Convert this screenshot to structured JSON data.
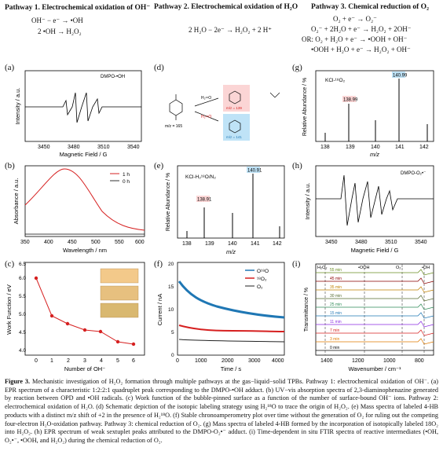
{
  "headers": {
    "p1": "Pathway 1. Electrochemical oxidation of OH⁻",
    "p2": "Pathway 2. Electrochemical oxidation of H₂O",
    "p3": "Pathway 3. Chemical reduction of O₂"
  },
  "equations": {
    "p1": [
      "OH⁻ − e⁻ → •OH",
      "2 •OH → H₂O₂"
    ],
    "p2": [
      "2 H₂O − 2e⁻ → H₂O₂ + 2 H⁺"
    ],
    "p3": [
      "O₂ + e⁻ → O₂⁻",
      "O₂⁻ + 2H₂O + e⁻ → H₂O₂ + 2OH⁻",
      "OR: O₂ + H₂O + e⁻ → •OOH + OH⁻",
      "•OOH + H₂O + e⁻ → H₂O₂ + OH⁻"
    ]
  },
  "panels": {
    "a": {
      "letter": "(a)",
      "ylabel": "Intensity / a.u.",
      "xlabel": "Magnetic Field / G",
      "inset": "DMPO-•OH",
      "xticks": [
        "3450",
        "3480",
        "3510",
        "3540"
      ]
    },
    "b": {
      "letter": "(b)",
      "ylabel": "Absorbance / a.u.",
      "xlabel": "Wavelength / nm",
      "xticks": [
        "350",
        "400",
        "450",
        "500",
        "550",
        "600"
      ],
      "legend": [
        "1 h",
        "0 h"
      ]
    },
    "c": {
      "letter": "(c)",
      "ylabel": "Work Function / eV",
      "xlabel": "Number of OH⁻",
      "xticks": [
        "0",
        "1",
        "2",
        "3",
        "4",
        "5",
        "6"
      ],
      "yticks": [
        "4.0",
        "4.5",
        "5.0",
        "5.5",
        "6.0",
        "6.5"
      ]
    },
    "d": {
      "letter": "(d)",
      "m1": "m/z = 165",
      "m2": "m/z = 139",
      "m3": "m/z = 141",
      "r1": "H₂¹⁶O",
      "r2": "H₂¹⁸O"
    },
    "e": {
      "letter": "(e)",
      "ylabel": "Relative Abundance / %",
      "xlabel": "m/z",
      "inset": "KCl-H₂¹⁸O/N₂",
      "xticks": [
        "138",
        "139",
        "140",
        "141",
        "142"
      ],
      "peak_labels": [
        "138.91",
        "140.91"
      ]
    },
    "f": {
      "letter": "(f)",
      "ylabel": "Current / nA",
      "xlabel": "Time / s",
      "xticks": [
        "0",
        "1000",
        "2000",
        "3000",
        "4000"
      ],
      "yticks": [
        "0",
        "5",
        "10",
        "15",
        "20"
      ],
      "legend": [
        "O¹⁸O",
        "¹⁸O₂",
        "O₂"
      ]
    },
    "g": {
      "letter": "(g)",
      "ylabel": "Relative Abundance / %",
      "xlabel": "m/z",
      "inset": "KCl-¹⁸O₂",
      "xticks": [
        "138",
        "139",
        "140",
        "141",
        "142"
      ],
      "peak_labels": [
        "138.99",
        "140.99"
      ]
    },
    "h": {
      "letter": "(h)",
      "ylabel": "Intensity / a.u.",
      "xlabel": "Magnetic Field / G",
      "inset": "DMPO-O₂•⁻",
      "xticks": [
        "3450",
        "3480",
        "3510",
        "3540"
      ]
    },
    "i": {
      "letter": "(i)",
      "ylabel": "Transmittance / %",
      "xlabel": "Wavenumber / cm⁻¹",
      "xticks": [
        "1400",
        "1200",
        "1000",
        "800"
      ],
      "bands": [
        "H₂O₂",
        "•OOH",
        "O₂⁻",
        "•OH"
      ],
      "times": [
        "55 min",
        "45 min",
        "35 min",
        "30 min",
        "25 min",
        "15 min",
        "11 min",
        "7 min",
        "3 min",
        "0 min"
      ]
    }
  },
  "chart_data": [
    {
      "type": "line",
      "panel": "a",
      "x": [
        3450,
        3465,
        3472,
        3478,
        3484,
        3490,
        3496,
        3503,
        3510,
        3520,
        3540
      ],
      "values": [
        0,
        0,
        0.3,
        -0.8,
        1,
        -0.9,
        0.95,
        -0.8,
        0.35,
        0,
        0
      ]
    },
    {
      "type": "line",
      "panel": "b",
      "x": [
        350,
        400,
        430,
        450,
        500,
        550,
        600
      ],
      "series": [
        {
          "name": "1 h",
          "values": [
            0.35,
            0.85,
            1.0,
            0.95,
            0.55,
            0.25,
            0.15
          ]
        },
        {
          "name": "0 h",
          "values": [
            0.05,
            0.05,
            0.05,
            0.05,
            0.05,
            0.05,
            0.05
          ]
        }
      ]
    },
    {
      "type": "line",
      "panel": "c",
      "x": [
        0,
        1,
        2,
        3,
        4,
        5,
        6
      ],
      "values": [
        6.3,
        5.2,
        4.95,
        4.8,
        4.75,
        4.45,
        4.38
      ],
      "ylim": [
        4.0,
        6.5
      ]
    },
    {
      "type": "bar",
      "panel": "e",
      "x": [
        138.1,
        138.91,
        140.0,
        140.91,
        141.9
      ],
      "values": [
        10,
        42,
        35,
        100,
        16
      ]
    },
    {
      "type": "line",
      "panel": "f",
      "x": [
        0,
        500,
        1000,
        2000,
        3000,
        4000
      ],
      "series": [
        {
          "name": "O¹⁸O",
          "values": [
            16,
            12.5,
            11,
            10,
            9,
            8.5
          ]
        },
        {
          "name": "¹⁸O₂",
          "values": [
            6.5,
            5.8,
            5.6,
            5.5,
            5.5,
            5.4
          ]
        },
        {
          "name": "O₂",
          "values": [
            3.2,
            3.0,
            2.9,
            2.9,
            2.8,
            2.8
          ]
        }
      ],
      "ylim": [
        0,
        20
      ]
    },
    {
      "type": "bar",
      "panel": "g",
      "x": [
        138.1,
        138.99,
        140.0,
        140.99,
        141.9
      ],
      "values": [
        12,
        65,
        30,
        100,
        25
      ]
    },
    {
      "type": "line",
      "panel": "h",
      "x": [
        3450,
        3470,
        3476,
        3482,
        3488,
        3494,
        3500,
        3506,
        3512,
        3520,
        3540
      ],
      "values": [
        0,
        0,
        0.6,
        -1,
        0.9,
        -0.8,
        0.9,
        -0.7,
        0.5,
        0,
        0
      ]
    }
  ],
  "caption": {
    "bold_lead": "Figure 3.",
    "text": "Mechanistic investigation of H₂O₂ formation through multiple pathways at the gas−liquid−solid TPBs. Pathway 1: electrochemical oxidation of OH⁻. (a) EPR spectrum of a characteristic 1:2:2:1 quadruplet peak corresponding to the DMPO-•OH adduct. (b) UV−vis absorption spectra of 2,3-diaminophenazine generated by reaction between OPD and •OH radicals. (c) Work function of the bubble-pinned surface as a function of the number of surface-bound OH⁻ ions. Pathway 2: electrochemical oxidation of H₂O. (d) Schematic depiction of the isotopic labeling strategy using H₂¹⁸O to trace the origin of H₂O₂. (e) Mass spectra of labeled 4-HB products with a distinct m/z shift of +2 in the presence of H₂¹⁸O. (f) Stable chronoamperometry plot over time without the generation of O₂ for ruling out the competing four-electron H₂O-oxidation pathway. Pathway 3: chemical reduction of O₂. (g) Mass spectra of labeled 4-HB formed by the incorporation of isotopically labeled 18O₂ into H₂O₂. (h) EPR spectrum of weak sextuplet peaks attributed to the DMPO-O₂•⁻ adduct. (i) Time-dependent in situ FTIR spectra of reactive intermediates (•OH, O₂•⁻, •OOH, and H₂O₂) during the chemical reduction of O₂."
  }
}
